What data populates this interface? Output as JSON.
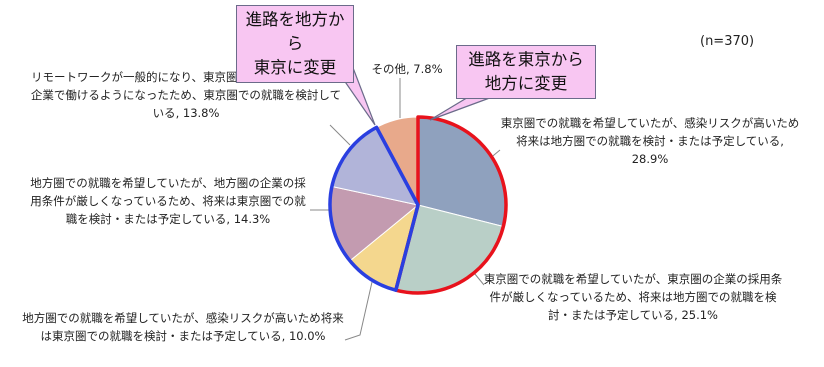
{
  "chart_data": {
    "type": "pie",
    "note": "(n=370)",
    "categories": [
      "東京圏での就職を希望していたが、感染リスクが高いため将来は地方圏での就職を検討・または予定している",
      "東京圏での就職を希望していたが、東京圏の企業の採用条件が厳しくなっているため、将来は地方圏での就職を検討・または予定している",
      "地方圏での就職を希望していたが、感染リスクが高いため将来は東京圏での就職を検討・または予定している",
      "地方圏での就職を希望していたが、地方圏の企業の採用条件が厳しくなっているため、将来は東京圏での就職を検討・または予定している",
      "リモートワークが一般的になり、東京圏に住まずに東京圏の企業で働けるようになったため、東京圏での就職を検討している",
      "その他"
    ],
    "values": [
      28.9,
      25.1,
      10.0,
      14.3,
      13.8,
      7.8
    ],
    "value_labels": [
      "28.9%",
      "25.1%",
      "10.0%",
      "14.3%",
      "13.8%",
      "7.8%"
    ],
    "colors": [
      "#8fa1be",
      "#b9cfc7",
      "#f4d78e",
      "#c39bb0",
      "#b1b4d9",
      "#e8a98b"
    ],
    "annotations": [
      {
        "lines": [
          "進路を東京から",
          "地方に変更"
        ],
        "outline": "#e8121c",
        "slices": [
          0,
          1
        ]
      },
      {
        "lines": [
          "進路を地方から",
          "東京に変更"
        ],
        "outline": "#2a3fe0",
        "slices": [
          2,
          3,
          4
        ]
      }
    ]
  }
}
